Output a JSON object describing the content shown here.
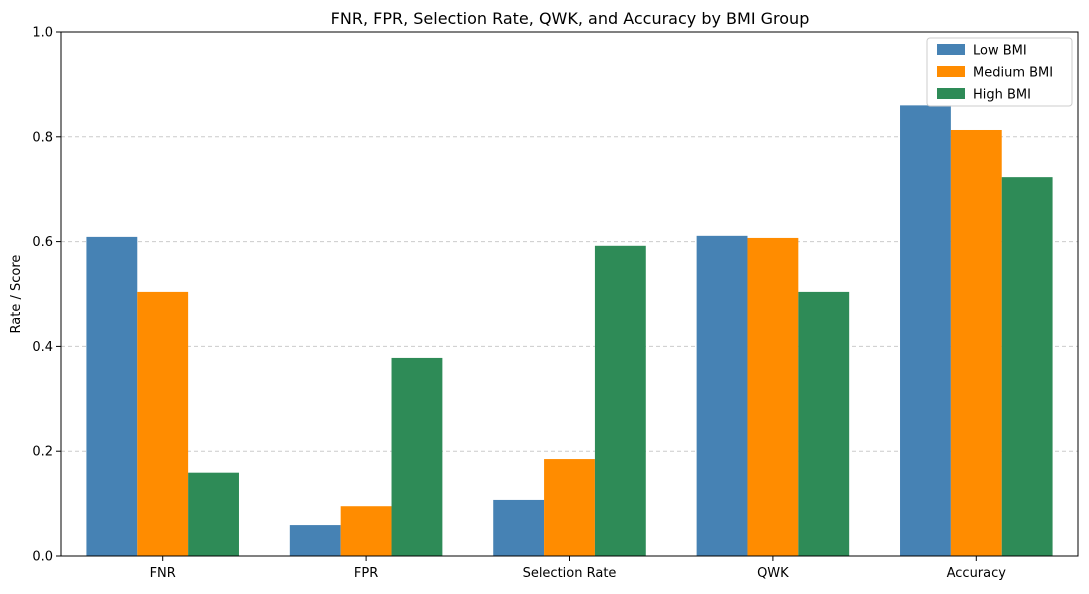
{
  "chart_data": {
    "type": "bar",
    "title": "FNR, FPR, Selection Rate, QWK, and Accuracy by BMI Group",
    "xlabel": "",
    "ylabel": "Rate / Score",
    "ylim": [
      0,
      1.0
    ],
    "yticks": [
      "0.0",
      "0.2",
      "0.4",
      "0.6",
      "0.8",
      "1.0"
    ],
    "grid": "horizontal dashed",
    "legend_position": "top-right",
    "categories": [
      "FNR",
      "FPR",
      "Selection Rate",
      "QWK",
      "Accuracy"
    ],
    "series": [
      {
        "name": "Low BMI",
        "color": "#4682b4",
        "values": [
          0.609,
          0.059,
          0.107,
          0.611,
          0.86
        ]
      },
      {
        "name": "Medium BMI",
        "color": "#ff8c00",
        "values": [
          0.504,
          0.095,
          0.185,
          0.607,
          0.813
        ]
      },
      {
        "name": "High BMI",
        "color": "#2e8b57",
        "values": [
          0.159,
          0.378,
          0.592,
          0.504,
          0.723
        ]
      }
    ]
  }
}
